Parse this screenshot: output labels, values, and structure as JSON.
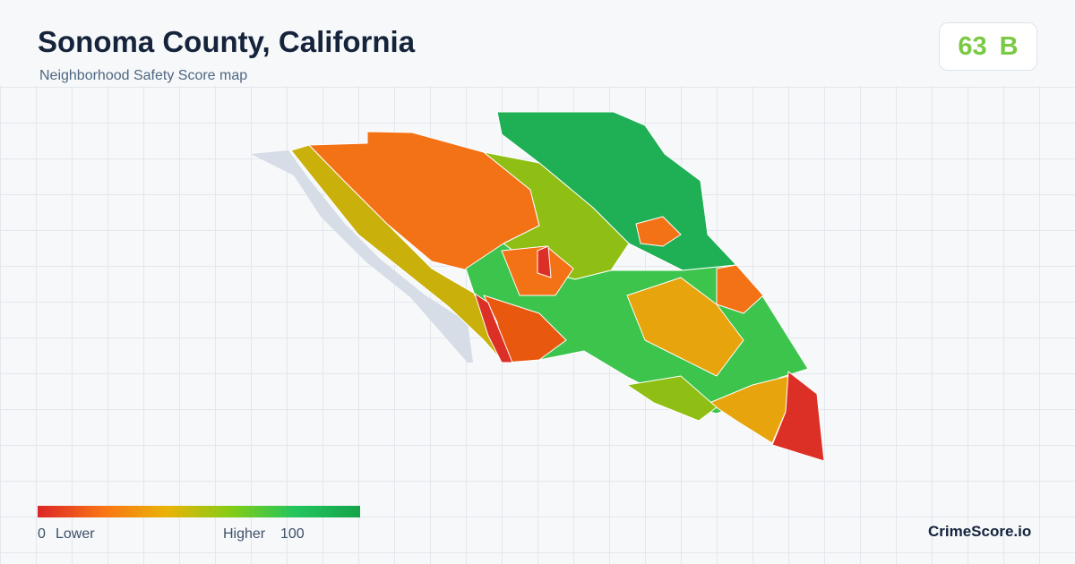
{
  "header": {
    "title": "Sonoma County, California",
    "subtitle": "Neighborhood Safety Score map"
  },
  "score": {
    "value": 63,
    "grade": "B"
  },
  "legend": {
    "min": 0,
    "min_label": "Lower",
    "max_label": "Higher",
    "max": 100
  },
  "brand": "CrimeScore.io"
}
